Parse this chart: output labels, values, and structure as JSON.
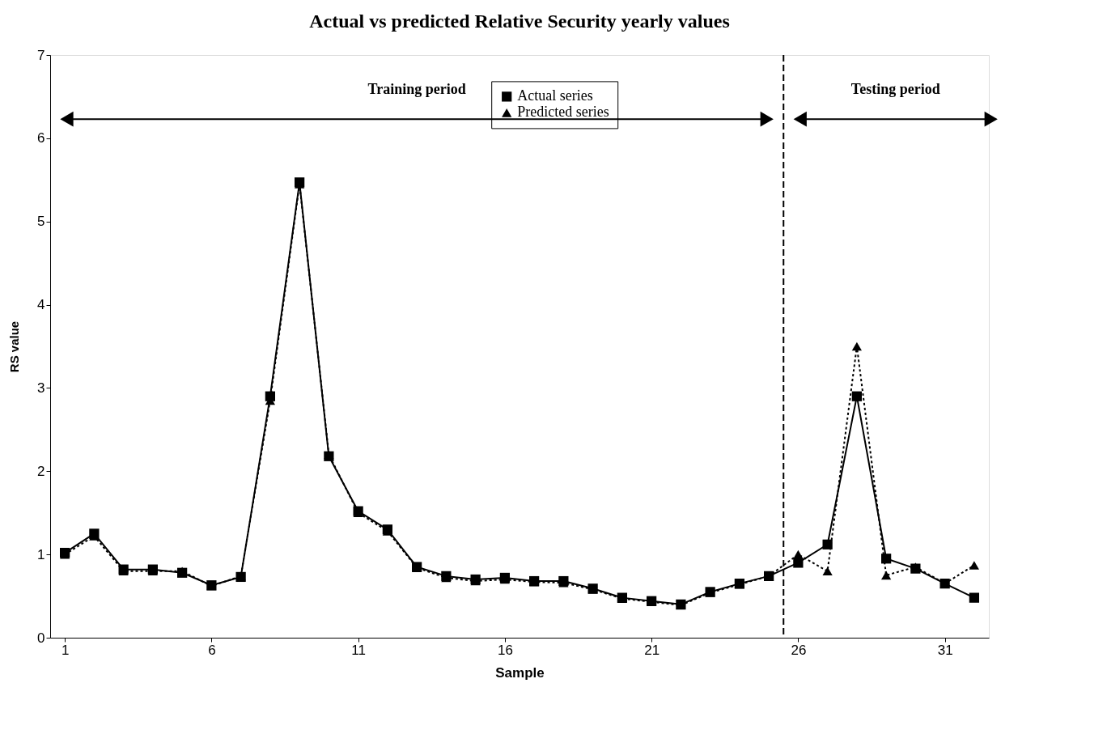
{
  "chart_data": {
    "type": "line",
    "title": "Actual vs predicted Relative Security yearly values",
    "xlabel": "Sample",
    "ylabel": "RS value",
    "x": [
      1,
      2,
      3,
      4,
      5,
      6,
      7,
      8,
      9,
      10,
      11,
      12,
      13,
      14,
      15,
      16,
      17,
      18,
      19,
      20,
      21,
      22,
      23,
      24,
      25,
      26,
      27,
      28,
      29,
      30,
      31,
      32
    ],
    "series": [
      {
        "name": "Actual series",
        "color": "#000000",
        "marker": "square",
        "line_style": "solid",
        "values": [
          1.02,
          1.25,
          0.82,
          0.82,
          0.78,
          0.63,
          0.73,
          2.9,
          5.47,
          2.18,
          1.52,
          1.3,
          0.85,
          0.74,
          0.7,
          0.72,
          0.68,
          0.68,
          0.59,
          0.48,
          0.44,
          0.4,
          0.55,
          0.65,
          0.74,
          0.9,
          1.12,
          2.9,
          0.95,
          0.83,
          0.65,
          0.48
        ]
      },
      {
        "name": "Predicted series",
        "color": "#000000",
        "marker": "triangle",
        "line_style": "dotted",
        "values": [
          1.0,
          1.22,
          0.8,
          0.8,
          0.8,
          0.62,
          0.74,
          2.85,
          5.45,
          2.2,
          1.5,
          1.28,
          0.84,
          0.72,
          0.68,
          0.7,
          0.67,
          0.66,
          0.58,
          0.47,
          0.43,
          0.39,
          0.54,
          0.64,
          0.74,
          1.0,
          0.8,
          3.5,
          0.75,
          0.85,
          0.65,
          0.87
        ]
      }
    ],
    "xlim": [
      0.5,
      32.5
    ],
    "xticks": [
      1,
      6,
      11,
      16,
      21,
      26,
      31
    ],
    "ylim": [
      0,
      7
    ],
    "yticks": [
      0,
      1,
      2,
      3,
      4,
      5,
      6,
      7
    ],
    "grid": false,
    "legend": "top",
    "ref_lines": [
      {
        "axis": "x",
        "value": 25.5,
        "line_style": "dashed"
      }
    ],
    "annotations": [
      "Training period",
      "Testing period"
    ]
  }
}
